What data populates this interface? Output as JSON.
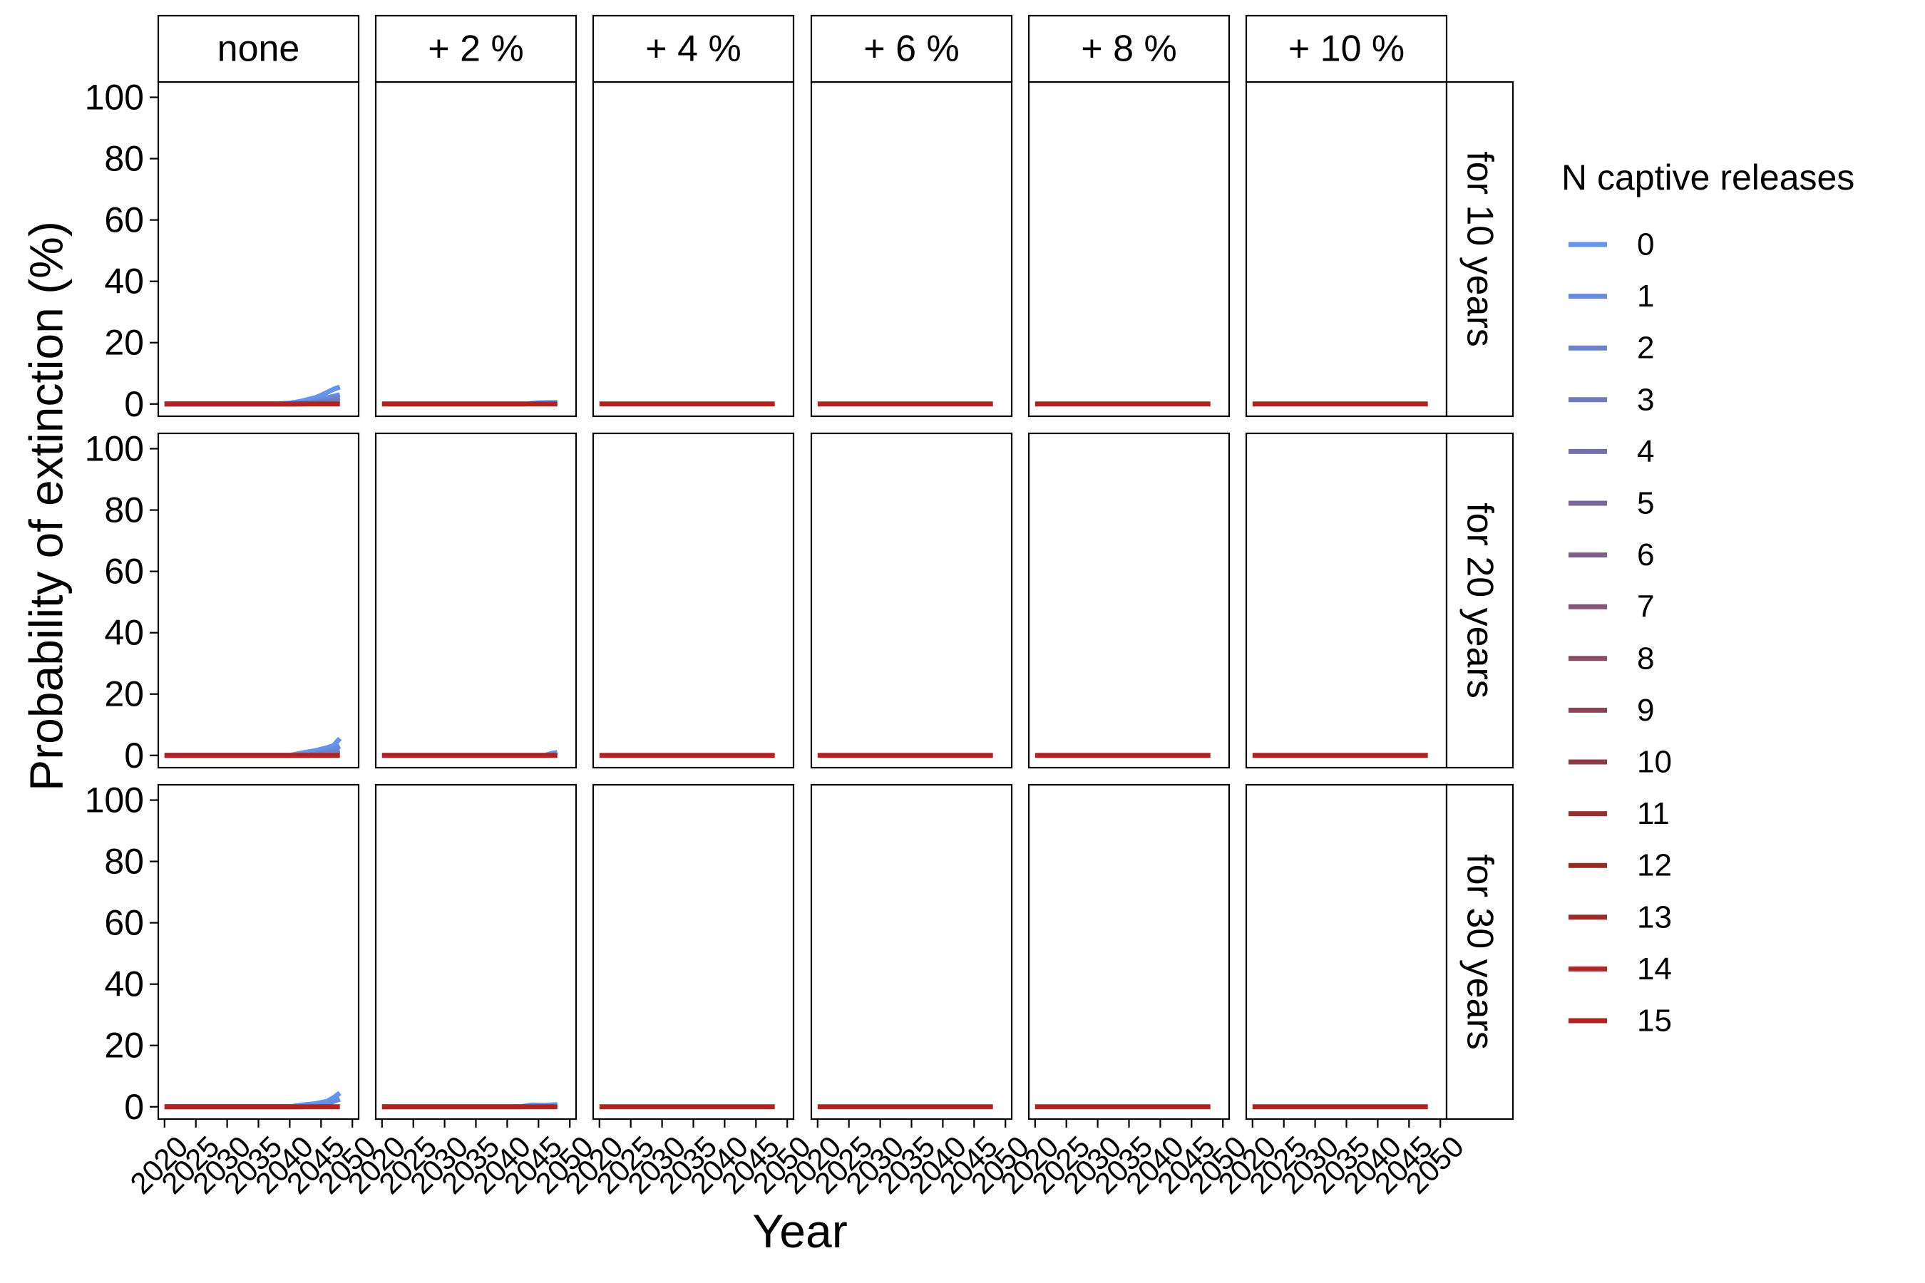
{
  "chart_data": {
    "type": "line",
    "title": "",
    "xlabel": "Year",
    "ylabel": "Probability of extinction (%)",
    "xlim": [
      2019,
      2051
    ],
    "ylim": [
      -4,
      105
    ],
    "x_ticks": [
      2020,
      2025,
      2030,
      2035,
      2040,
      2045,
      2050
    ],
    "y_ticks": [
      0,
      20,
      40,
      60,
      80,
      100
    ],
    "col_facets": [
      "none",
      "+ 2 %",
      "+ 4 %",
      "+ 6 %",
      "+ 8 %",
      "+ 10 %"
    ],
    "row_facets": [
      "for 10 years",
      "for 20 years",
      "for 30 years"
    ],
    "legend": {
      "title": "N captive releases",
      "position": "right",
      "entries": [
        "0",
        "1",
        "2",
        "3",
        "4",
        "5",
        "6",
        "7",
        "8",
        "9",
        "10",
        "11",
        "12",
        "13",
        "14",
        "15"
      ],
      "colors": [
        "#6495ED",
        "#688BDC",
        "#6C83CB",
        "#7079BA",
        "#7570A9",
        "#796798",
        "#7D5E87",
        "#815676",
        "#864D65",
        "#8A4455",
        "#8E3B44",
        "#923233",
        "#962A22",
        "#9A2A28",
        "#A82A2A",
        "#B22222"
      ]
    },
    "grid": false,
    "panels": [
      {
        "row": 0,
        "col": 0,
        "series": [
          {
            "release": 0,
            "x": [
              2020,
              2038,
              2040,
              2041,
              2042,
              2043,
              2044,
              2045,
              2046,
              2047,
              2048
            ],
            "y": [
              0,
              0,
              0.3,
              0.6,
              1,
              1.5,
              2,
              2.8,
              3.8,
              4.8,
              5.5
            ]
          },
          {
            "release": 1,
            "x": [
              2020,
              2040,
              2042,
              2044,
              2046,
              2048
            ],
            "y": [
              0,
              0,
              0.4,
              1,
              2,
              3
            ]
          },
          {
            "release": 2,
            "x": [
              2020,
              2041,
              2043,
              2045,
              2047,
              2048
            ],
            "y": [
              0,
              0,
              0.3,
              0.8,
              1.5,
              2
            ]
          },
          {
            "release": 3,
            "x": [
              2020,
              2042,
              2044,
              2046,
              2048
            ],
            "y": [
              0,
              0,
              0.3,
              0.7,
              1
            ]
          },
          {
            "release": 15,
            "x": [
              2020,
              2048
            ],
            "y": [
              0,
              0
            ]
          }
        ]
      },
      {
        "row": 0,
        "col": 1,
        "series": [
          {
            "release": 0,
            "x": [
              2020,
              2043,
              2045,
              2048
            ],
            "y": [
              0,
              0,
              0.4,
              0.5
            ]
          },
          {
            "release": 15,
            "x": [
              2020,
              2048
            ],
            "y": [
              0,
              0
            ]
          }
        ]
      },
      {
        "row": 0,
        "col": 2,
        "series": [
          {
            "release": 15,
            "x": [
              2020,
              2048
            ],
            "y": [
              0,
              0
            ]
          }
        ]
      },
      {
        "row": 0,
        "col": 3,
        "series": [
          {
            "release": 15,
            "x": [
              2020,
              2048
            ],
            "y": [
              0,
              0
            ]
          }
        ]
      },
      {
        "row": 0,
        "col": 4,
        "series": [
          {
            "release": 15,
            "x": [
              2020,
              2048
            ],
            "y": [
              0,
              0
            ]
          }
        ]
      },
      {
        "row": 0,
        "col": 5,
        "series": [
          {
            "release": 15,
            "x": [
              2020,
              2048
            ],
            "y": [
              0,
              0
            ]
          }
        ]
      },
      {
        "row": 1,
        "col": 0,
        "series": [
          {
            "release": 0,
            "x": [
              2020,
              2040,
              2042,
              2044,
              2046,
              2047,
              2048
            ],
            "y": [
              0,
              0,
              0.8,
              1.5,
              2.5,
              3.2,
              5.5
            ]
          },
          {
            "release": 1,
            "x": [
              2020,
              2041,
              2043,
              2045,
              2047,
              2048
            ],
            "y": [
              0,
              0,
              0.5,
              1,
              2,
              3
            ]
          },
          {
            "release": 2,
            "x": [
              2020,
              2043,
              2046,
              2048
            ],
            "y": [
              0,
              0,
              0.8,
              1.5
            ]
          },
          {
            "release": 15,
            "x": [
              2020,
              2048
            ],
            "y": [
              0,
              0
            ]
          }
        ]
      },
      {
        "row": 1,
        "col": 1,
        "series": [
          {
            "release": 0,
            "x": [
              2020,
              2046,
              2047,
              2048
            ],
            "y": [
              0,
              0,
              0.6,
              1
            ]
          },
          {
            "release": 15,
            "x": [
              2020,
              2048
            ],
            "y": [
              0,
              0
            ]
          }
        ]
      },
      {
        "row": 1,
        "col": 2,
        "series": [
          {
            "release": 15,
            "x": [
              2020,
              2048
            ],
            "y": [
              0,
              0
            ]
          }
        ]
      },
      {
        "row": 1,
        "col": 3,
        "series": [
          {
            "release": 15,
            "x": [
              2020,
              2048
            ],
            "y": [
              0,
              0
            ]
          }
        ]
      },
      {
        "row": 1,
        "col": 4,
        "series": [
          {
            "release": 15,
            "x": [
              2020,
              2048
            ],
            "y": [
              0,
              0
            ]
          }
        ]
      },
      {
        "row": 1,
        "col": 5,
        "series": [
          {
            "release": 15,
            "x": [
              2020,
              2048
            ],
            "y": [
              0,
              0
            ]
          }
        ]
      },
      {
        "row": 2,
        "col": 0,
        "series": [
          {
            "release": 0,
            "x": [
              2020,
              2040,
              2042,
              2044,
              2046,
              2047,
              2048
            ],
            "y": [
              0,
              0,
              0.6,
              1,
              1.8,
              3,
              4.5
            ]
          },
          {
            "release": 1,
            "x": [
              2020,
              2042,
              2044,
              2046,
              2048
            ],
            "y": [
              0,
              0,
              0.5,
              1,
              2.5
            ]
          },
          {
            "release": 15,
            "x": [
              2020,
              2048
            ],
            "y": [
              0,
              0
            ]
          }
        ]
      },
      {
        "row": 2,
        "col": 1,
        "series": [
          {
            "release": 0,
            "x": [
              2020,
              2042,
              2044,
              2046,
              2048
            ],
            "y": [
              0,
              0,
              0.6,
              0.5,
              0.7
            ]
          },
          {
            "release": 15,
            "x": [
              2020,
              2048
            ],
            "y": [
              0,
              0
            ]
          }
        ]
      },
      {
        "row": 2,
        "col": 2,
        "series": [
          {
            "release": 15,
            "x": [
              2020,
              2048
            ],
            "y": [
              0,
              0
            ]
          }
        ]
      },
      {
        "row": 2,
        "col": 3,
        "series": [
          {
            "release": 15,
            "x": [
              2020,
              2048
            ],
            "y": [
              0,
              0
            ]
          }
        ]
      },
      {
        "row": 2,
        "col": 4,
        "series": [
          {
            "release": 15,
            "x": [
              2020,
              2048
            ],
            "y": [
              0,
              0
            ]
          }
        ]
      },
      {
        "row": 2,
        "col": 5,
        "series": [
          {
            "release": 15,
            "x": [
              2020,
              2048
            ],
            "y": [
              0,
              0
            ]
          }
        ]
      }
    ]
  }
}
